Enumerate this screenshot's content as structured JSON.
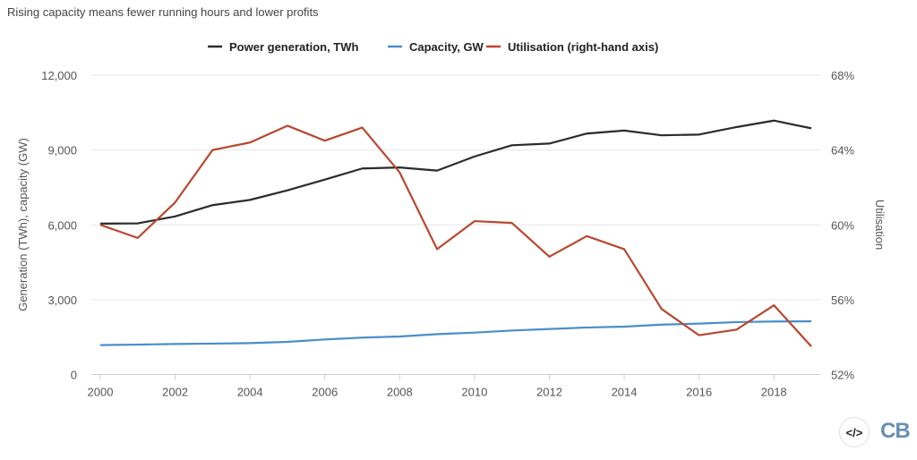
{
  "chart_data": {
    "type": "line",
    "title": "Rising capacity means fewer running hours and lower profits",
    "ylabel": "Generation (TWh), capacity (GW)",
    "y2label": "Utilisation",
    "ylim": [
      0,
      12000
    ],
    "y2lim": [
      52,
      68
    ],
    "yticks": [
      "0",
      "3,000",
      "6,000",
      "9,000",
      "12,000"
    ],
    "y2ticks": [
      "52%",
      "56%",
      "60%",
      "64%",
      "68%"
    ],
    "xticks": [
      "2000",
      "2002",
      "2004",
      "2006",
      "2008",
      "2010",
      "2012",
      "2014",
      "2016",
      "2018"
    ],
    "grid": true,
    "legend_position": "top",
    "x": [
      2000,
      2001,
      2002,
      2003,
      2004,
      2005,
      2006,
      2007,
      2008,
      2009,
      2010,
      2011,
      2012,
      2013,
      2014,
      2015,
      2016,
      2017,
      2018,
      2019
    ],
    "series": [
      {
        "name": "Power generation, TWh",
        "axis": "left",
        "color": "#2b2b2b",
        "values": [
          6050,
          6060,
          6340,
          6790,
          7000,
          7385,
          7815,
          8260,
          8300,
          8175,
          8740,
          9190,
          9260,
          9660,
          9780,
          9590,
          9620,
          9920,
          10180,
          9870
        ]
      },
      {
        "name": "Capacity, GW",
        "axis": "left",
        "color": "#4a8ec8",
        "values": [
          1180,
          1200,
          1225,
          1240,
          1260,
          1310,
          1405,
          1480,
          1525,
          1620,
          1680,
          1765,
          1825,
          1885,
          1920,
          2000,
          2040,
          2100,
          2125,
          2135
        ]
      },
      {
        "name": "Utilisation (right-hand axis)",
        "axis": "right",
        "color": "#b9472f",
        "values": [
          60.0,
          59.3,
          61.2,
          64.0,
          64.4,
          65.3,
          64.5,
          65.2,
          62.8,
          58.7,
          60.2,
          60.1,
          58.3,
          59.4,
          58.7,
          55.5,
          54.1,
          54.4,
          55.7,
          53.5
        ]
      }
    ]
  },
  "footer": {
    "embed_icon": "code-embed-icon",
    "embed_label": "</>",
    "logo": "CB"
  }
}
